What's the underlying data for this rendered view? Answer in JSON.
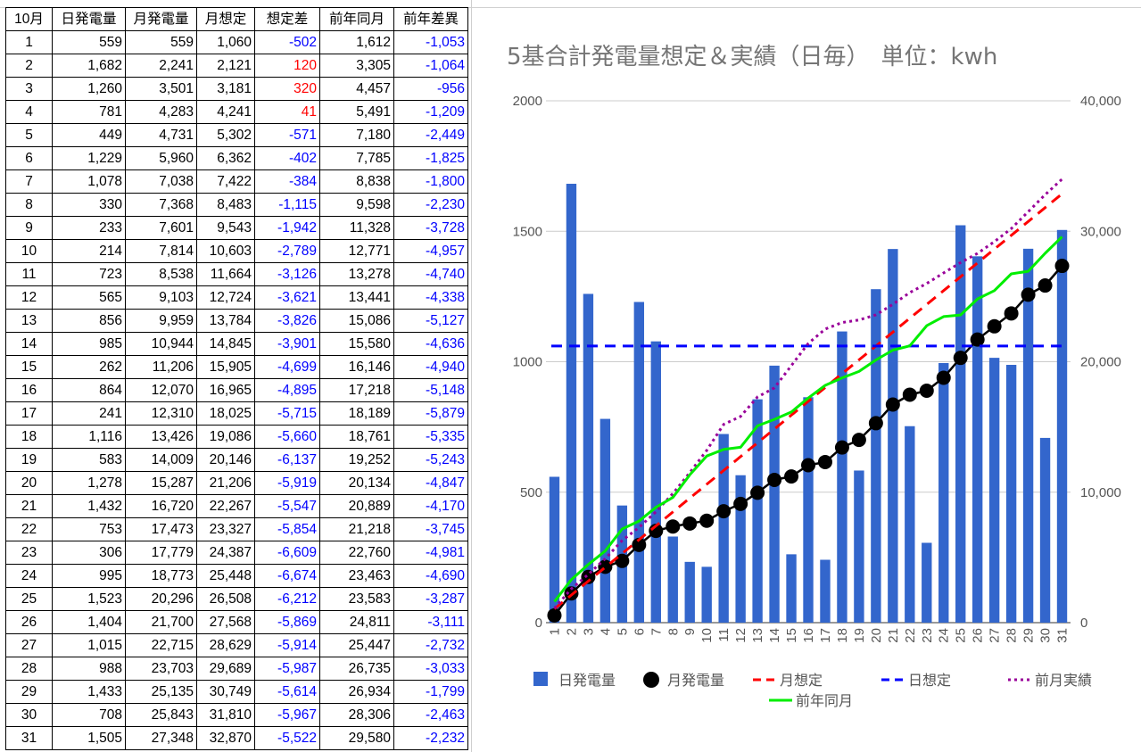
{
  "table": {
    "headers": [
      "10月",
      "日発電量",
      "月発電量",
      "月想定",
      "想定差",
      "前年同月",
      "前年差異"
    ],
    "rows": [
      [
        "1",
        "559",
        "559",
        "1,060",
        "-502",
        "1,612",
        "-1,053"
      ],
      [
        "2",
        "1,682",
        "2,241",
        "2,121",
        "120",
        "3,305",
        "-1,064"
      ],
      [
        "3",
        "1,260",
        "3,501",
        "3,181",
        "320",
        "4,457",
        "-956"
      ],
      [
        "4",
        "781",
        "4,283",
        "4,241",
        "41",
        "5,491",
        "-1,209"
      ],
      [
        "5",
        "449",
        "4,731",
        "5,302",
        "-571",
        "7,180",
        "-2,449"
      ],
      [
        "6",
        "1,229",
        "5,960",
        "6,362",
        "-402",
        "7,785",
        "-1,825"
      ],
      [
        "7",
        "1,078",
        "7,038",
        "7,422",
        "-384",
        "8,838",
        "-1,800"
      ],
      [
        "8",
        "330",
        "7,368",
        "8,483",
        "-1,115",
        "9,598",
        "-2,230"
      ],
      [
        "9",
        "233",
        "7,601",
        "9,543",
        "-1,942",
        "11,328",
        "-3,728"
      ],
      [
        "10",
        "214",
        "7,814",
        "10,603",
        "-2,789",
        "12,771",
        "-4,957"
      ],
      [
        "11",
        "723",
        "8,538",
        "11,664",
        "-3,126",
        "13,278",
        "-4,740"
      ],
      [
        "12",
        "565",
        "9,103",
        "12,724",
        "-3,621",
        "13,441",
        "-4,338"
      ],
      [
        "13",
        "856",
        "9,959",
        "13,784",
        "-3,826",
        "15,086",
        "-5,127"
      ],
      [
        "14",
        "985",
        "10,944",
        "14,845",
        "-3,901",
        "15,580",
        "-4,636"
      ],
      [
        "15",
        "262",
        "11,206",
        "15,905",
        "-4,699",
        "16,146",
        "-4,940"
      ],
      [
        "16",
        "864",
        "12,070",
        "16,965",
        "-4,895",
        "17,218",
        "-5,148"
      ],
      [
        "17",
        "241",
        "12,310",
        "18,025",
        "-5,715",
        "18,189",
        "-5,879"
      ],
      [
        "18",
        "1,116",
        "13,426",
        "19,086",
        "-5,660",
        "18,761",
        "-5,335"
      ],
      [
        "19",
        "583",
        "14,009",
        "20,146",
        "-6,137",
        "19,252",
        "-5,243"
      ],
      [
        "20",
        "1,278",
        "15,287",
        "21,206",
        "-5,919",
        "20,134",
        "-4,847"
      ],
      [
        "21",
        "1,432",
        "16,720",
        "22,267",
        "-5,547",
        "20,889",
        "-4,170"
      ],
      [
        "22",
        "753",
        "17,473",
        "23,327",
        "-5,854",
        "21,218",
        "-3,745"
      ],
      [
        "23",
        "306",
        "17,779",
        "24,387",
        "-6,609",
        "22,760",
        "-4,981"
      ],
      [
        "24",
        "995",
        "18,773",
        "25,448",
        "-6,674",
        "23,463",
        "-4,690"
      ],
      [
        "25",
        "1,523",
        "20,296",
        "26,508",
        "-6,212",
        "23,583",
        "-3,287"
      ],
      [
        "26",
        "1,404",
        "21,700",
        "27,568",
        "-5,869",
        "24,811",
        "-3,111"
      ],
      [
        "27",
        "1,015",
        "22,715",
        "28,629",
        "-5,914",
        "25,447",
        "-2,732"
      ],
      [
        "28",
        "988",
        "23,703",
        "29,689",
        "-5,987",
        "26,735",
        "-3,033"
      ],
      [
        "29",
        "1,433",
        "25,135",
        "30,749",
        "-5,614",
        "26,934",
        "-1,799"
      ],
      [
        "30",
        "708",
        "25,843",
        "31,810",
        "-5,967",
        "28,306",
        "-2,463"
      ],
      [
        "31",
        "1,505",
        "27,348",
        "32,870",
        "-5,522",
        "29,580",
        "-2,232"
      ]
    ],
    "colors": {
      "negative": "#0000ff",
      "positive": "#ff0000"
    }
  },
  "chart_data": {
    "type": "bar+line",
    "title": "5基合計発電量想定＆実績（日毎）　単位：kwh",
    "categories": [
      "1",
      "2",
      "3",
      "4",
      "5",
      "6",
      "7",
      "8",
      "9",
      "10",
      "11",
      "12",
      "13",
      "14",
      "15",
      "16",
      "17",
      "18",
      "19",
      "20",
      "21",
      "22",
      "23",
      "24",
      "25",
      "26",
      "27",
      "28",
      "29",
      "30",
      "31"
    ],
    "left_axis": {
      "min": 0,
      "max": 2000,
      "ticks": [
        "0",
        "500",
        "1000",
        "1500",
        "2000"
      ]
    },
    "right_axis": {
      "min": 0,
      "max": 40000,
      "ticks": [
        "0",
        "10,000",
        "20,000",
        "30,000",
        "40,000"
      ]
    },
    "gridlines": true,
    "legend_position": "bottom",
    "series": [
      {
        "name": "日発電量",
        "type": "bar",
        "axis": "left",
        "color": "#3366cc",
        "values": [
          559,
          1682,
          1260,
          781,
          449,
          1229,
          1078,
          330,
          233,
          214,
          723,
          565,
          856,
          985,
          262,
          864,
          241,
          1116,
          583,
          1278,
          1432,
          753,
          306,
          995,
          1523,
          1404,
          1015,
          988,
          1433,
          708,
          1505
        ]
      },
      {
        "name": "月発電量",
        "type": "line-marker",
        "axis": "right",
        "color": "#000000",
        "values": [
          559,
          2241,
          3501,
          4283,
          4731,
          5960,
          7038,
          7368,
          7601,
          7814,
          8538,
          9103,
          9959,
          10944,
          11206,
          12070,
          12310,
          13426,
          14009,
          15287,
          16720,
          17473,
          17779,
          18773,
          20296,
          21700,
          22715,
          23703,
          25135,
          25843,
          27348
        ]
      },
      {
        "name": "月想定",
        "type": "line-dashed",
        "axis": "right",
        "color": "#ff0000",
        "values": [
          1060,
          2121,
          3181,
          4241,
          5302,
          6362,
          7422,
          8483,
          9543,
          10603,
          11664,
          12724,
          13784,
          14845,
          15905,
          16965,
          18025,
          19086,
          20146,
          21206,
          22267,
          23327,
          24387,
          25448,
          26508,
          27568,
          28629,
          29689,
          30749,
          31810,
          32870
        ]
      },
      {
        "name": "日想定",
        "type": "line-dashed",
        "axis": "left",
        "color": "#0000ff",
        "values": [
          1060,
          1060,
          1060,
          1060,
          1060,
          1060,
          1060,
          1060,
          1060,
          1060,
          1060,
          1060,
          1060,
          1060,
          1060,
          1060,
          1060,
          1060,
          1060,
          1060,
          1060,
          1060,
          1060,
          1060,
          1060,
          1060,
          1060,
          1060,
          1060,
          1060,
          1060
        ]
      },
      {
        "name": "前月実績",
        "type": "line-dotted",
        "axis": "right",
        "color": "#990099",
        "values": [
          1100,
          2600,
          3700,
          4900,
          6300,
          7300,
          8500,
          9900,
          11500,
          13200,
          15200,
          15800,
          17300,
          18000,
          19700,
          21400,
          22500,
          23000,
          23200,
          23600,
          24400,
          25300,
          26000,
          26800,
          27600,
          28300,
          29200,
          30200,
          31500,
          32800,
          34000
        ]
      },
      {
        "name": "前年同月",
        "type": "line",
        "axis": "right",
        "color": "#00ee00",
        "values": [
          1612,
          3305,
          4457,
          5491,
          7180,
          7785,
          8838,
          9598,
          11328,
          12771,
          13278,
          13441,
          15086,
          15580,
          16146,
          17218,
          18189,
          18761,
          19252,
          20134,
          20889,
          21218,
          22760,
          23463,
          23583,
          24811,
          25447,
          26735,
          26934,
          28306,
          29580
        ]
      }
    ]
  }
}
